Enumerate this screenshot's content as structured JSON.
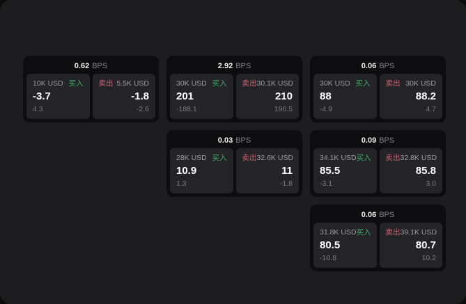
{
  "labels": {
    "unit": "BPS",
    "buy": "买入",
    "sell": "卖出"
  },
  "colors": {
    "app_background": "#1d1d20",
    "card_background": "#0d0d0f",
    "panel_background": "#242428",
    "buy_green": "#3fae63",
    "sell_red": "#d05c6c"
  },
  "cards": [
    {
      "row": 1,
      "col": 1,
      "bps": "0.62",
      "buy": {
        "amount": "10K USD",
        "price": "-3.7",
        "delta": "4.3"
      },
      "sell": {
        "amount": "5.5K USD",
        "price": "-1.8",
        "delta": "-2.6"
      }
    },
    {
      "row": 1,
      "col": 2,
      "bps": "2.92",
      "buy": {
        "amount": "30K USD",
        "price": "201",
        "delta": "-188.1"
      },
      "sell": {
        "amount": "30.1K USD",
        "price": "210",
        "delta": "196.5"
      }
    },
    {
      "row": 1,
      "col": 3,
      "bps": "0.06",
      "buy": {
        "amount": "30K USD",
        "price": "88",
        "delta": "-4.9"
      },
      "sell": {
        "amount": "30K USD",
        "price": "88.2",
        "delta": "4.7"
      }
    },
    {
      "row": 2,
      "col": 2,
      "bps": "0.03",
      "buy": {
        "amount": "28K USD",
        "price": "10.9",
        "delta": "1.3"
      },
      "sell": {
        "amount": "32.6K USD",
        "price": "11",
        "delta": "-1.8"
      }
    },
    {
      "row": 2,
      "col": 3,
      "bps": "0.09",
      "buy": {
        "amount": "34.1K USD",
        "price": "85.5",
        "delta": "-3.1"
      },
      "sell": {
        "amount": "32.8K USD",
        "price": "85.8",
        "delta": "3.0"
      }
    },
    {
      "row": 3,
      "col": 3,
      "bps": "0.06",
      "buy": {
        "amount": "31.8K USD",
        "price": "80.5",
        "delta": "-10.8"
      },
      "sell": {
        "amount": "39.1K USD",
        "price": "80.7",
        "delta": "10.2"
      }
    }
  ]
}
